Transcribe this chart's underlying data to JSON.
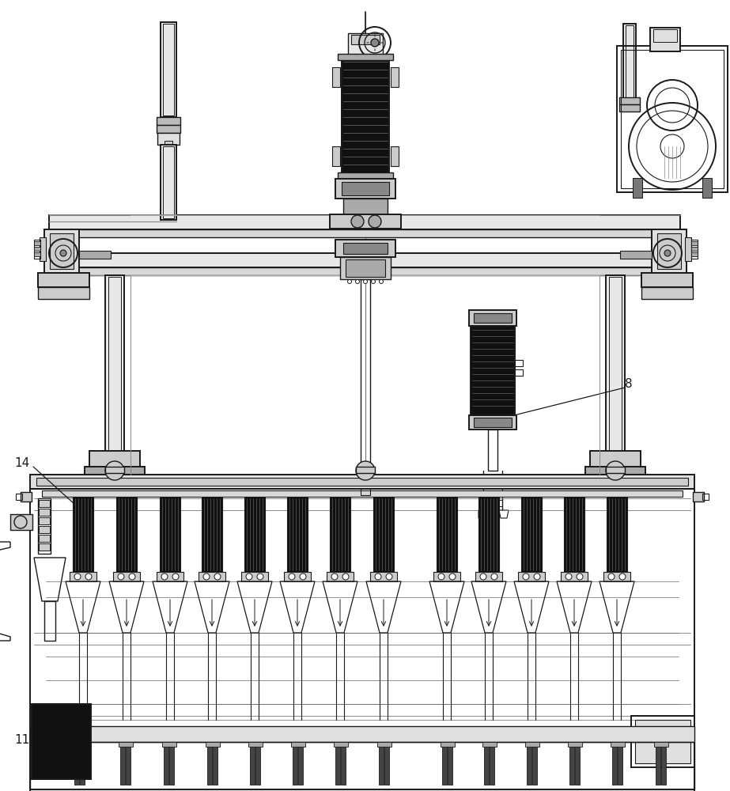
{
  "bg_color": "#ffffff",
  "line_color": "#1a1a1a",
  "dark_fill": "#111111",
  "gray_fill": "#888888",
  "light_gray": "#dedede",
  "mid_gray": "#666666",
  "label_8": "8",
  "label_11": "11",
  "label_14": "14",
  "figsize": [
    9.23,
    10.0
  ],
  "dpi": 100
}
